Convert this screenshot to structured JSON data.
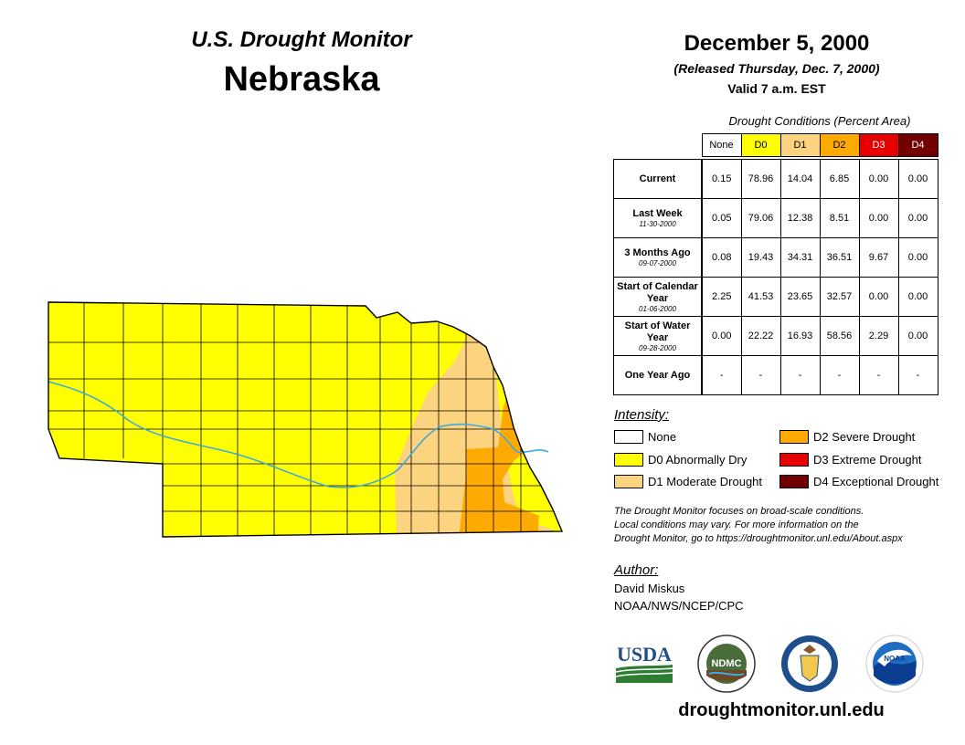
{
  "header": {
    "product": "U.S. Drought Monitor",
    "state": "Nebraska",
    "date": "December 5, 2000",
    "released": "(Released Thursday, Dec. 7, 2000)",
    "valid": "Valid 7 a.m. EST"
  },
  "table": {
    "caption": "Drought Conditions (Percent Area)",
    "columns": [
      "None",
      "D0",
      "D1",
      "D2",
      "D3",
      "D4"
    ],
    "rows": [
      {
        "label": "Current",
        "sublabel": "",
        "values": [
          "0.15",
          "78.96",
          "14.04",
          "6.85",
          "0.00",
          "0.00"
        ]
      },
      {
        "label": "Last Week",
        "sublabel": "11-30-2000",
        "values": [
          "0.05",
          "79.06",
          "12.38",
          "8.51",
          "0.00",
          "0.00"
        ]
      },
      {
        "label": "3 Months Ago",
        "sublabel": "09-07-2000",
        "values": [
          "0.08",
          "19.43",
          "34.31",
          "36.51",
          "9.67",
          "0.00"
        ]
      },
      {
        "label": "Start of Calendar Year",
        "sublabel": "01-06-2000",
        "values": [
          "2.25",
          "41.53",
          "23.65",
          "32.57",
          "0.00",
          "0.00"
        ]
      },
      {
        "label": "Start of Water Year",
        "sublabel": "09-28-2000",
        "values": [
          "0.00",
          "22.22",
          "16.93",
          "58.56",
          "2.29",
          "0.00"
        ]
      },
      {
        "label": "One Year Ago",
        "sublabel": "",
        "values": [
          "-",
          "-",
          "-",
          "-",
          "-",
          "-"
        ]
      }
    ]
  },
  "legend": {
    "title": "Intensity:",
    "items": [
      {
        "label": "None",
        "color": "#ffffff"
      },
      {
        "label": "D0 Abnormally Dry",
        "color": "#ffff00"
      },
      {
        "label": "D1 Moderate Drought",
        "color": "#fcd37f"
      },
      {
        "label": "D2 Severe Drought",
        "color": "#ffaa00"
      },
      {
        "label": "D3 Extreme Drought",
        "color": "#e60000"
      },
      {
        "label": "D4 Exceptional Drought",
        "color": "#730000"
      }
    ]
  },
  "note": {
    "line1": "The Drought Monitor focuses on broad-scale conditions.",
    "line2": "Local conditions may vary. For more information on the",
    "line3": "Drought Monitor, go to https://droughtmonitor.unl.edu/About.aspx"
  },
  "author": {
    "label": "Author:",
    "name": "David Miskus",
    "org": "NOAA/NWS/NCEP/CPC"
  },
  "logos": {
    "usda": "USDA",
    "ndmc": "NDMC",
    "noaa": "NOAA"
  },
  "footer": {
    "url": "droughtmonitor.unl.edu"
  },
  "map_colors": {
    "d0": "#ffff00",
    "d1": "#fcd37f",
    "d2": "#ffaa00",
    "river": "#3fa9e0",
    "boundary": "#000000"
  }
}
